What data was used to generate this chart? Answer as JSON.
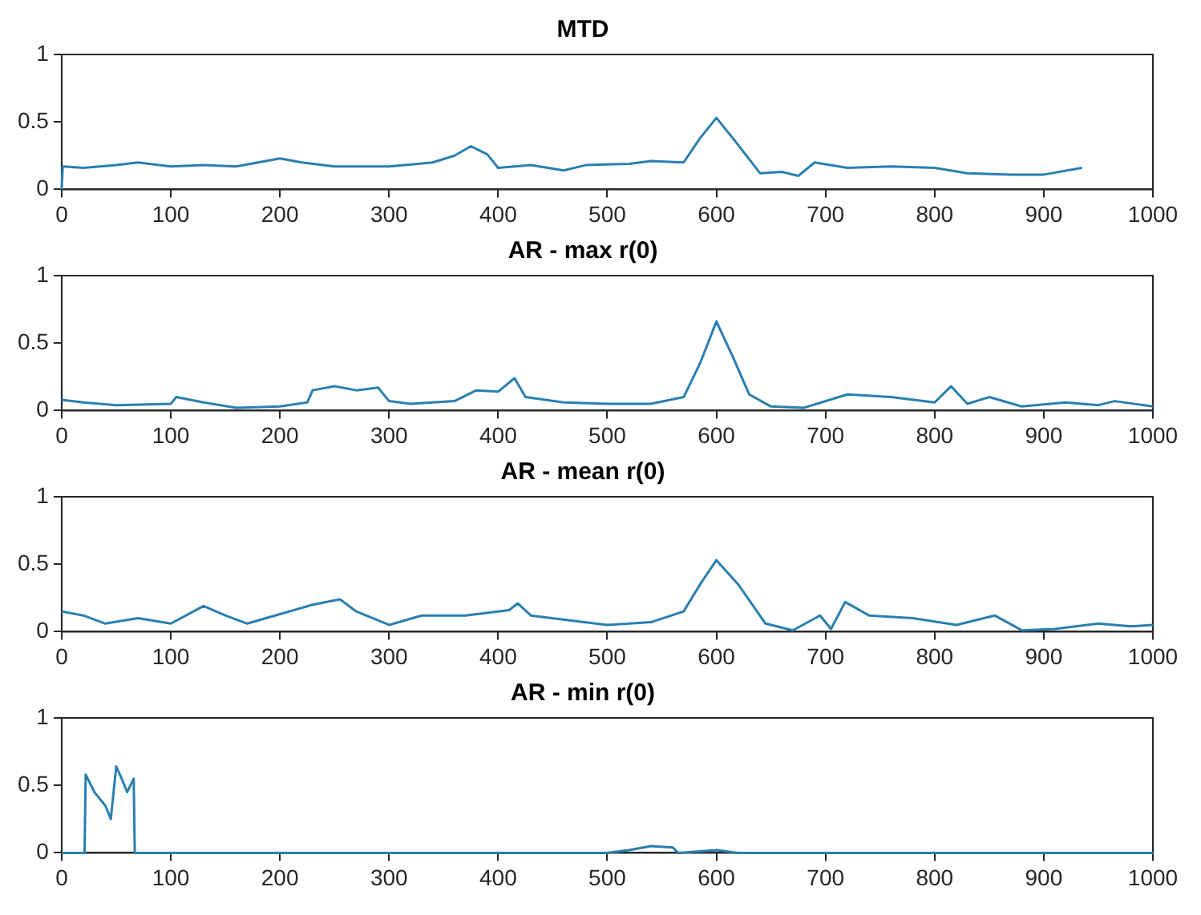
{
  "chart_data": [
    {
      "type": "line",
      "title": "MTD",
      "color": "#2a7fb0",
      "xlim": [
        0,
        1000
      ],
      "ylim": [
        0,
        1
      ],
      "xticks": [
        0,
        100,
        200,
        300,
        400,
        500,
        600,
        700,
        800,
        900,
        1000
      ],
      "yticks": [
        0,
        0.5,
        1
      ],
      "x": [
        0,
        1,
        20,
        50,
        70,
        100,
        130,
        160,
        200,
        220,
        250,
        300,
        340,
        360,
        375,
        390,
        400,
        430,
        460,
        480,
        520,
        540,
        570,
        585,
        600,
        615,
        640,
        660,
        675,
        690,
        720,
        760,
        800,
        830,
        870,
        900,
        935
      ],
      "values": [
        0,
        0.17,
        0.16,
        0.18,
        0.2,
        0.17,
        0.18,
        0.17,
        0.23,
        0.2,
        0.17,
        0.17,
        0.2,
        0.25,
        0.32,
        0.26,
        0.16,
        0.18,
        0.14,
        0.18,
        0.19,
        0.21,
        0.2,
        0.38,
        0.53,
        0.38,
        0.12,
        0.13,
        0.1,
        0.2,
        0.16,
        0.17,
        0.16,
        0.12,
        0.11,
        0.11,
        0.16
      ]
    },
    {
      "type": "line",
      "title": "AR - max r(0)",
      "color": "#2a7fb0",
      "xlim": [
        0,
        1000
      ],
      "ylim": [
        0,
        1
      ],
      "xticks": [
        0,
        100,
        200,
        300,
        400,
        500,
        600,
        700,
        800,
        900,
        1000
      ],
      "yticks": [
        0,
        0.5,
        1
      ],
      "x": [
        0,
        20,
        50,
        100,
        105,
        130,
        160,
        200,
        225,
        230,
        250,
        270,
        290,
        300,
        320,
        360,
        380,
        400,
        415,
        425,
        460,
        500,
        540,
        570,
        585,
        600,
        615,
        630,
        650,
        680,
        720,
        760,
        800,
        815,
        830,
        850,
        880,
        920,
        950,
        965,
        1000
      ],
      "values": [
        0.08,
        0.06,
        0.04,
        0.05,
        0.1,
        0.06,
        0.02,
        0.03,
        0.06,
        0.15,
        0.18,
        0.15,
        0.17,
        0.07,
        0.05,
        0.07,
        0.15,
        0.14,
        0.24,
        0.1,
        0.06,
        0.05,
        0.05,
        0.1,
        0.35,
        0.66,
        0.4,
        0.12,
        0.03,
        0.02,
        0.12,
        0.1,
        0.06,
        0.18,
        0.05,
        0.1,
        0.03,
        0.06,
        0.04,
        0.07,
        0.03
      ]
    },
    {
      "type": "line",
      "title": "AR - mean r(0)",
      "color": "#2a7fb0",
      "xlim": [
        0,
        1000
      ],
      "ylim": [
        0,
        1
      ],
      "xticks": [
        0,
        100,
        200,
        300,
        400,
        500,
        600,
        700,
        800,
        900,
        1000
      ],
      "yticks": [
        0,
        0.5,
        1
      ],
      "x": [
        0,
        20,
        40,
        70,
        100,
        130,
        150,
        170,
        200,
        230,
        255,
        270,
        300,
        330,
        370,
        410,
        418,
        430,
        470,
        500,
        540,
        570,
        585,
        600,
        620,
        645,
        670,
        695,
        705,
        718,
        740,
        780,
        820,
        855,
        880,
        910,
        950,
        980,
        1000
      ],
      "values": [
        0.15,
        0.12,
        0.06,
        0.1,
        0.06,
        0.19,
        0.12,
        0.06,
        0.13,
        0.2,
        0.24,
        0.15,
        0.05,
        0.12,
        0.12,
        0.16,
        0.21,
        0.12,
        0.08,
        0.05,
        0.07,
        0.15,
        0.35,
        0.53,
        0.35,
        0.06,
        0.01,
        0.12,
        0.02,
        0.22,
        0.12,
        0.1,
        0.05,
        0.12,
        0.01,
        0.02,
        0.06,
        0.04,
        0.05
      ]
    },
    {
      "type": "line",
      "title": "AR - min r(0)",
      "color": "#2a7fb0",
      "xlim": [
        0,
        1000
      ],
      "ylim": [
        0,
        1
      ],
      "xticks": [
        0,
        100,
        200,
        300,
        400,
        500,
        600,
        700,
        800,
        900,
        1000
      ],
      "yticks": [
        0,
        0.5,
        1
      ],
      "x": [
        0,
        21,
        22,
        30,
        40,
        45,
        50,
        55,
        60,
        66,
        67,
        500,
        520,
        540,
        560,
        565,
        600,
        620,
        1000
      ],
      "values": [
        0,
        0,
        0.58,
        0.45,
        0.35,
        0.25,
        0.64,
        0.55,
        0.45,
        0.55,
        0,
        0,
        0.02,
        0.05,
        0.04,
        0,
        0.02,
        0,
        0
      ]
    }
  ]
}
